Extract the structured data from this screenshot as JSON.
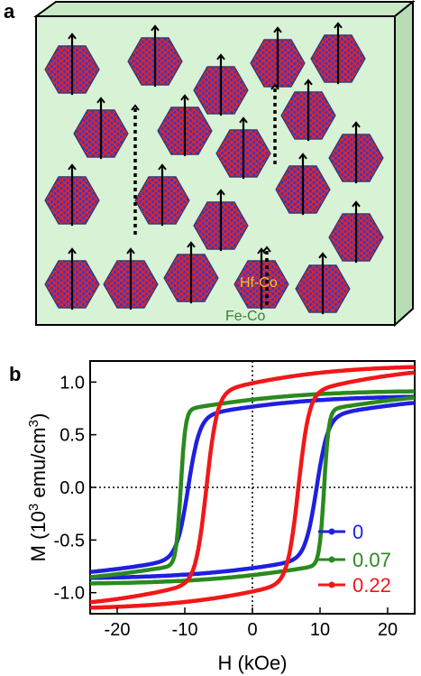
{
  "panel_a": {
    "letter": "a",
    "labels": {
      "grain": "Hf-Co",
      "matrix": "Fe-Co"
    },
    "colors": {
      "matrix_fill": "#d8f2d6",
      "box_side": "#b8ddb6",
      "grain_red": "#d9262a",
      "grain_blue": "#3a36c8",
      "grain_edge": "#2c3a6b",
      "hf_label": "#f3c21b",
      "fe_label": "#3c7c3a"
    }
  },
  "panel_b": {
    "letter": "b"
  },
  "chart_data": {
    "type": "line",
    "xlabel": "H (kOe)",
    "ylabel_parts": [
      "M (10",
      "3",
      " emu/cm",
      "3",
      ")"
    ],
    "xlim": [
      -24,
      24
    ],
    "ylim": [
      -1.2,
      1.2
    ],
    "xticks": [
      -20,
      -10,
      0,
      10,
      20
    ],
    "xtick_labels": [
      "-20",
      "-10",
      "0",
      "10",
      "20"
    ],
    "yticks": [
      1.0,
      0.5,
      0.0,
      -0.5,
      -1.0
    ],
    "ytick_labels": [
      "1.0",
      "0.5",
      "0.0",
      "-0.5",
      "-1.0"
    ],
    "zero_lines": true,
    "legend_position": "lower-right",
    "series": [
      {
        "name": "0",
        "color": "#1f1fe0",
        "Ms": 0.87,
        "Hc": 9.5,
        "w": 1.7,
        "branch_tilt": 0.23
      },
      {
        "name": "0.07",
        "color": "#2a8a1e",
        "Ms": 0.92,
        "Hc": 10.6,
        "w": 0.7,
        "branch_tilt": 0.2
      },
      {
        "name": "0.22",
        "color": "#f01818",
        "Ms": 1.16,
        "Hc": 6.8,
        "w": 1.6,
        "branch_tilt": 0.23
      }
    ]
  }
}
